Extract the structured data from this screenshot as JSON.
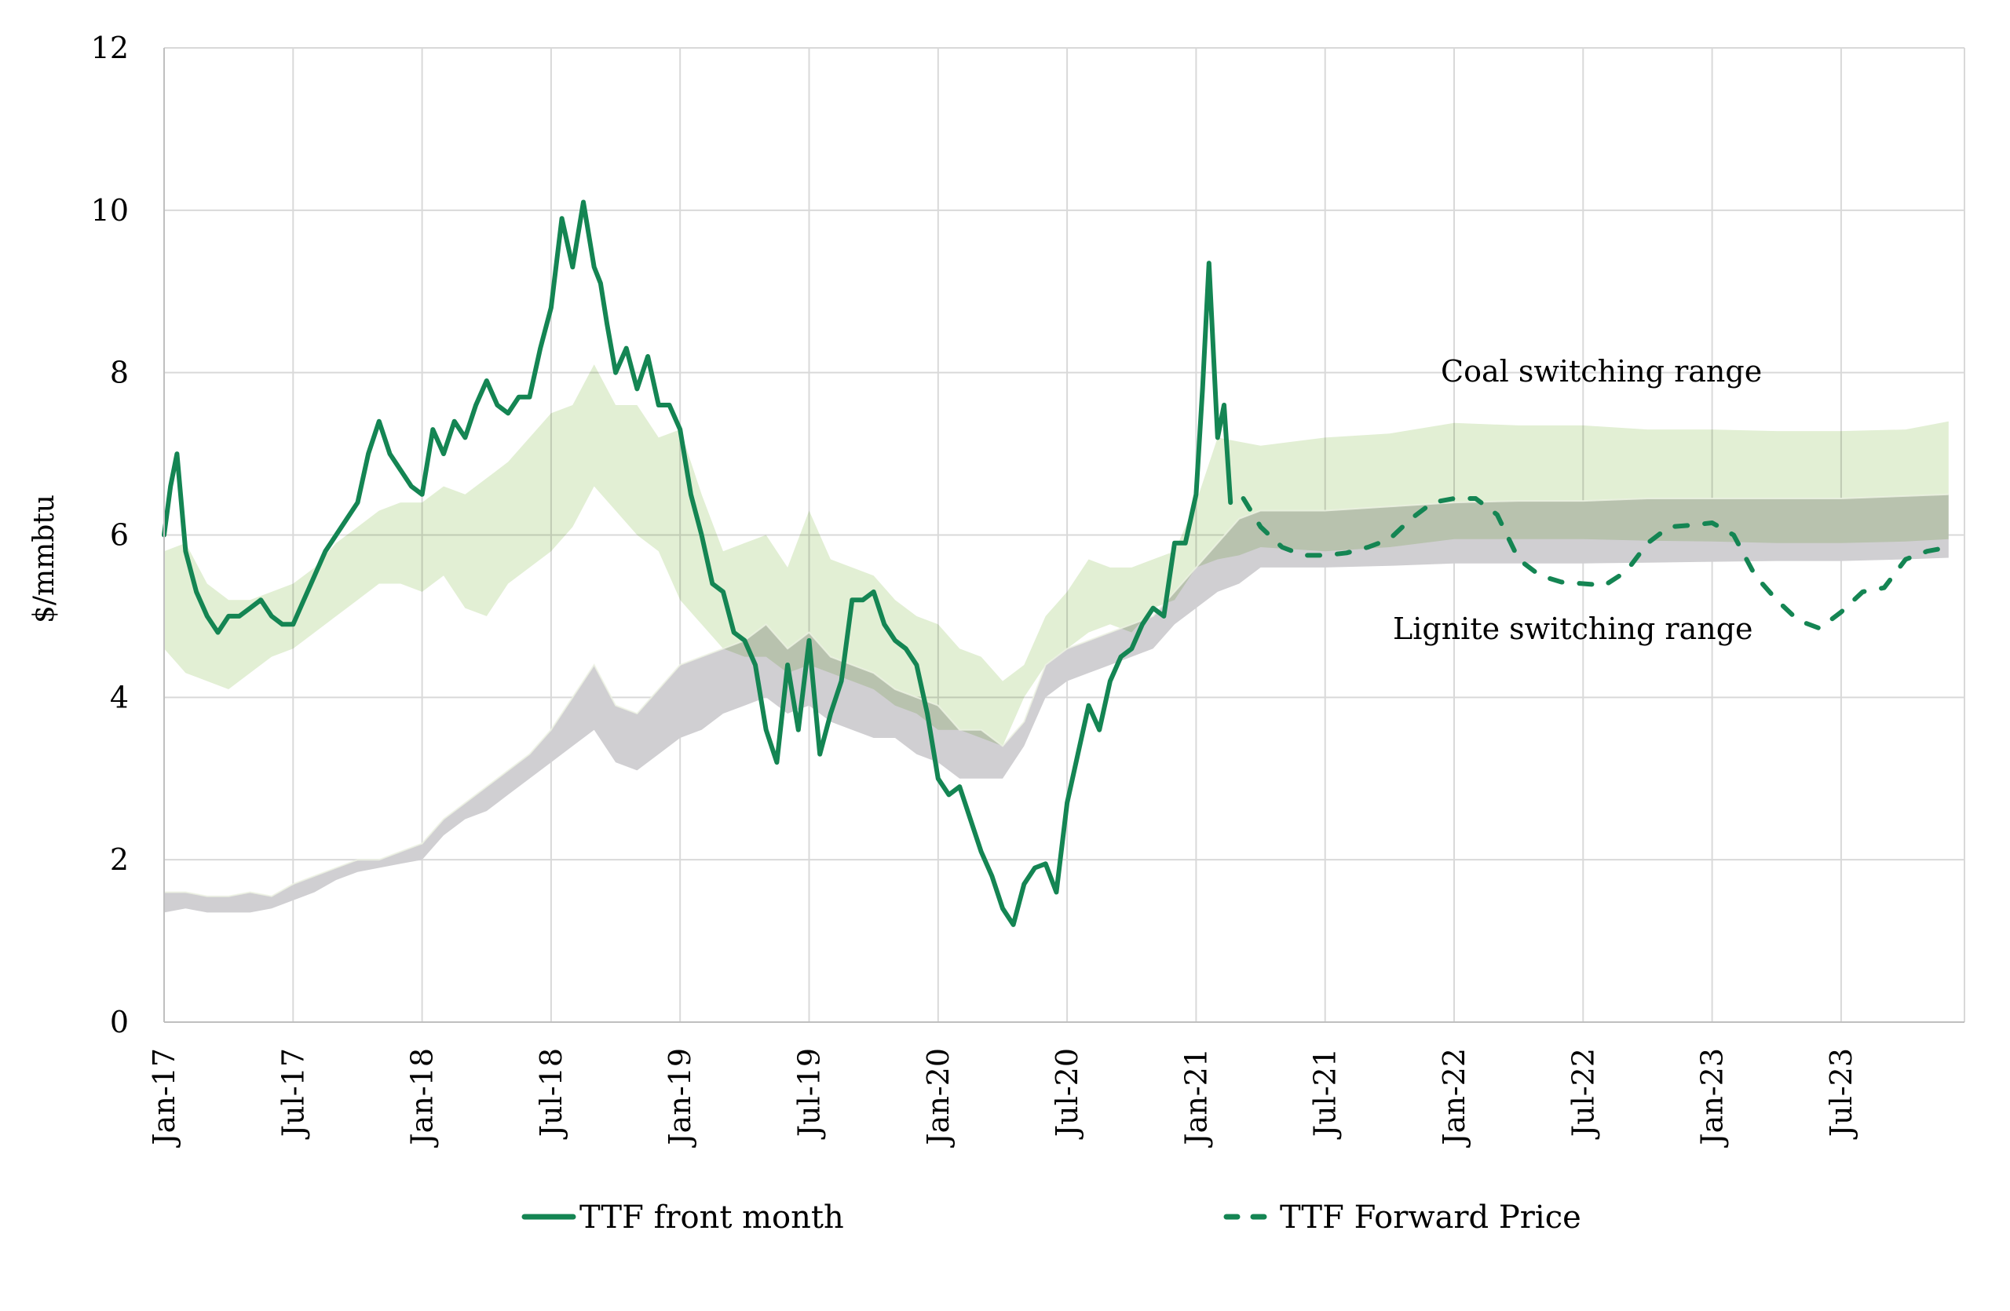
{
  "chart_data": {
    "type": "line",
    "title": "",
    "xlabel": "",
    "ylabel": "$/mmbtu",
    "ylim": [
      0,
      12
    ],
    "yticks": [
      0,
      2,
      4,
      6,
      8,
      10,
      12
    ],
    "xlim": [
      "2017-01",
      "2023-12"
    ],
    "xtick_labels": [
      "Jan-17",
      "Jul-17",
      "Jan-18",
      "Jul-18",
      "Jan-19",
      "Jul-19",
      "Jan-20",
      "Jul-20",
      "Jan-21",
      "Jul-21",
      "Jan-22",
      "Jul-22",
      "Jan-23",
      "Jul-23"
    ],
    "grid": true,
    "legend_position": "bottom",
    "annotations": [
      {
        "text": "Coal switching range",
        "x": "2022-03",
        "y": 7.9
      },
      {
        "text": "Lignite switching range",
        "x": "2022-02",
        "y": 4.7
      }
    ],
    "colors": {
      "ttf_line": "#148553",
      "coal_band": "#e2efd4",
      "lignite_band": "#d0cfd2",
      "overlap": "#c8d4b8",
      "grid": "#d9d9d9"
    },
    "x_months": [
      0,
      1,
      2,
      3,
      4,
      5,
      6,
      7,
      8,
      9,
      10,
      11,
      12,
      13,
      14,
      15,
      16,
      17,
      18,
      19,
      20,
      21,
      22,
      23,
      24,
      25,
      26,
      27,
      28,
      29,
      30,
      31,
      32,
      33,
      34,
      35,
      36,
      37,
      38,
      39,
      40,
      41,
      42,
      43,
      44,
      45,
      46,
      47,
      48,
      49
    ],
    "x_unit": "months since Jan-17",
    "series": [
      {
        "name": "TTF front month",
        "style": "solid",
        "x": [
          0,
          0.3,
          0.6,
          1,
          1.5,
          2,
          2.5,
          3,
          3.5,
          4,
          4.5,
          5,
          5.5,
          6,
          6.5,
          7,
          7.5,
          8,
          8.5,
          9,
          9.5,
          10,
          10.5,
          11,
          11.5,
          12,
          12.5,
          13,
          13.5,
          14,
          14.5,
          15,
          15.5,
          16,
          16.5,
          17,
          17.5,
          18,
          18.5,
          19,
          19.5,
          20,
          20.3,
          20.6,
          21,
          21.5,
          22,
          22.5,
          23,
          23.5,
          24,
          24.5,
          25,
          25.5,
          26,
          26.5,
          27,
          27.5,
          28,
          28.5,
          29,
          29.5,
          30,
          30.5,
          31,
          31.5,
          32,
          32.5,
          33,
          33.5,
          34,
          34.5,
          35,
          35.5,
          36,
          36.5,
          37,
          37.5,
          38,
          38.5,
          39,
          39.5,
          40,
          40.5,
          41,
          41.5,
          42,
          42.5,
          43,
          43.5,
          44,
          44.5,
          45,
          45.5,
          46,
          46.5,
          47,
          47.5,
          48,
          48.3,
          48.6,
          49,
          49.3,
          49.6
        ],
        "values": [
          6.0,
          6.6,
          7.0,
          5.8,
          5.3,
          5.0,
          4.8,
          5.0,
          5.0,
          5.1,
          5.2,
          5.0,
          4.9,
          4.9,
          5.2,
          5.5,
          5.8,
          6.0,
          6.2,
          6.4,
          7.0,
          7.4,
          7.0,
          6.8,
          6.6,
          6.5,
          7.3,
          7.0,
          7.4,
          7.2,
          7.6,
          7.9,
          7.6,
          7.5,
          7.7,
          7.7,
          8.3,
          8.8,
          9.9,
          9.3,
          10.1,
          9.3,
          9.1,
          8.6,
          8.0,
          8.3,
          7.8,
          8.2,
          7.6,
          7.6,
          7.3,
          6.5,
          6.0,
          5.4,
          5.3,
          4.8,
          4.7,
          4.4,
          3.6,
          3.2,
          4.4,
          3.6,
          4.7,
          3.3,
          3.8,
          4.2,
          5.2,
          5.2,
          5.3,
          4.9,
          4.7,
          4.6,
          4.4,
          3.8,
          3.0,
          2.8,
          2.9,
          2.5,
          2.1,
          1.8,
          1.4,
          1.2,
          1.7,
          1.9,
          1.95,
          1.6,
          2.7,
          3.3,
          3.9,
          3.6,
          4.2,
          4.5,
          4.6,
          4.9,
          5.1,
          5.0,
          5.9,
          5.9,
          6.5,
          7.8,
          9.35,
          7.2,
          7.6,
          6.4
        ]
      },
      {
        "name": "TTF Forward Price",
        "style": "dashed",
        "x": [
          50.2,
          51,
          52,
          53,
          54,
          55,
          56,
          57,
          58,
          59,
          60,
          61,
          62,
          63,
          64,
          65,
          66,
          67,
          68,
          69,
          70,
          71,
          72,
          73,
          74,
          75,
          76,
          77,
          78,
          79,
          80,
          81,
          82,
          83
        ],
        "values": [
          6.45,
          6.1,
          5.85,
          5.75,
          5.75,
          5.78,
          5.85,
          5.95,
          6.2,
          6.4,
          6.45,
          6.45,
          6.25,
          5.7,
          5.5,
          5.42,
          5.4,
          5.38,
          5.55,
          5.9,
          6.1,
          6.12,
          6.15,
          6.0,
          5.5,
          5.2,
          4.95,
          4.85,
          5.05,
          5.3,
          5.35,
          5.7,
          5.8,
          5.85
        ]
      }
    ],
    "bands": [
      {
        "name": "Coal switching range",
        "x": [
          0,
          1,
          2,
          3,
          4,
          5,
          6,
          7,
          8,
          9,
          10,
          11,
          12,
          13,
          14,
          15,
          16,
          17,
          18,
          19,
          20,
          21,
          22,
          23,
          24,
          25,
          26,
          27,
          28,
          29,
          30,
          31,
          32,
          33,
          34,
          35,
          36,
          37,
          38,
          39,
          40,
          41,
          42,
          43,
          44,
          45,
          46,
          47,
          48,
          49,
          50,
          51,
          54,
          57,
          60,
          63,
          66,
          69,
          72,
          75,
          78,
          81,
          83
        ],
        "high": [
          5.8,
          5.9,
          5.4,
          5.2,
          5.2,
          5.3,
          5.4,
          5.6,
          5.9,
          6.1,
          6.3,
          6.4,
          6.4,
          6.6,
          6.5,
          6.7,
          6.9,
          7.2,
          7.5,
          7.6,
          8.1,
          7.6,
          7.6,
          7.2,
          7.3,
          6.5,
          5.8,
          5.9,
          6.0,
          5.6,
          6.3,
          5.7,
          5.6,
          5.5,
          5.2,
          5.0,
          4.9,
          4.6,
          4.5,
          4.2,
          4.4,
          5.0,
          5.3,
          5.7,
          5.6,
          5.6,
          5.7,
          5.8,
          6.4,
          7.2,
          7.15,
          7.1,
          7.2,
          7.25,
          7.38,
          7.35,
          7.35,
          7.3,
          7.3,
          7.28,
          7.28,
          7.3,
          7.4
        ],
        "low": [
          4.6,
          4.3,
          4.2,
          4.1,
          4.3,
          4.5,
          4.6,
          4.8,
          5.0,
          5.2,
          5.4,
          5.4,
          5.3,
          5.5,
          5.1,
          5.0,
          5.4,
          5.6,
          5.8,
          6.1,
          6.6,
          6.3,
          6.0,
          5.8,
          5.2,
          4.9,
          4.6,
          4.5,
          4.5,
          4.3,
          4.4,
          4.3,
          4.2,
          4.1,
          3.9,
          3.8,
          3.6,
          3.6,
          3.5,
          3.4,
          4.0,
          4.4,
          4.6,
          4.8,
          4.9,
          4.8,
          5.1,
          5.2,
          5.6,
          5.7,
          5.75,
          5.85,
          5.8,
          5.85,
          5.95,
          5.95,
          5.95,
          5.93,
          5.92,
          5.9,
          5.9,
          5.92,
          5.95
        ]
      },
      {
        "name": "Lignite switching range",
        "x": [
          0,
          1,
          2,
          3,
          4,
          5,
          6,
          7,
          8,
          9,
          10,
          11,
          12,
          13,
          14,
          15,
          16,
          17,
          18,
          19,
          20,
          21,
          22,
          23,
          24,
          25,
          26,
          27,
          28,
          29,
          30,
          31,
          32,
          33,
          34,
          35,
          36,
          37,
          38,
          39,
          40,
          41,
          42,
          43,
          44,
          45,
          46,
          47,
          48,
          49,
          50,
          51,
          54,
          57,
          60,
          63,
          66,
          69,
          72,
          75,
          78,
          81,
          83
        ],
        "high": [
          1.6,
          1.6,
          1.55,
          1.55,
          1.6,
          1.55,
          1.7,
          1.8,
          1.9,
          2.0,
          2.0,
          2.1,
          2.2,
          2.5,
          2.7,
          2.9,
          3.1,
          3.3,
          3.6,
          4.0,
          4.4,
          3.9,
          3.8,
          4.1,
          4.4,
          4.5,
          4.6,
          4.7,
          4.9,
          4.6,
          4.8,
          4.5,
          4.4,
          4.3,
          4.1,
          4.0,
          3.9,
          3.6,
          3.6,
          3.4,
          3.7,
          4.4,
          4.6,
          4.7,
          4.8,
          4.9,
          5.0,
          5.3,
          5.6,
          5.9,
          6.2,
          6.3,
          6.3,
          6.35,
          6.4,
          6.42,
          6.42,
          6.45,
          6.45,
          6.45,
          6.45,
          6.48,
          6.5
        ],
        "low": [
          1.35,
          1.4,
          1.35,
          1.35,
          1.35,
          1.4,
          1.5,
          1.6,
          1.75,
          1.85,
          1.9,
          1.95,
          2.0,
          2.3,
          2.5,
          2.6,
          2.8,
          3.0,
          3.2,
          3.4,
          3.6,
          3.2,
          3.1,
          3.3,
          3.5,
          3.6,
          3.8,
          3.9,
          4.0,
          3.8,
          3.9,
          3.7,
          3.6,
          3.5,
          3.5,
          3.3,
          3.2,
          3.0,
          3.0,
          3.0,
          3.4,
          4.0,
          4.2,
          4.3,
          4.4,
          4.5,
          4.6,
          4.9,
          5.1,
          5.3,
          5.4,
          5.6,
          5.6,
          5.62,
          5.65,
          5.65,
          5.65,
          5.66,
          5.67,
          5.68,
          5.68,
          5.7,
          5.72
        ]
      }
    ]
  },
  "legend": {
    "items": [
      {
        "label": "TTF front month",
        "style": "solid"
      },
      {
        "label": "TTF Forward Price",
        "style": "dashed"
      }
    ]
  }
}
